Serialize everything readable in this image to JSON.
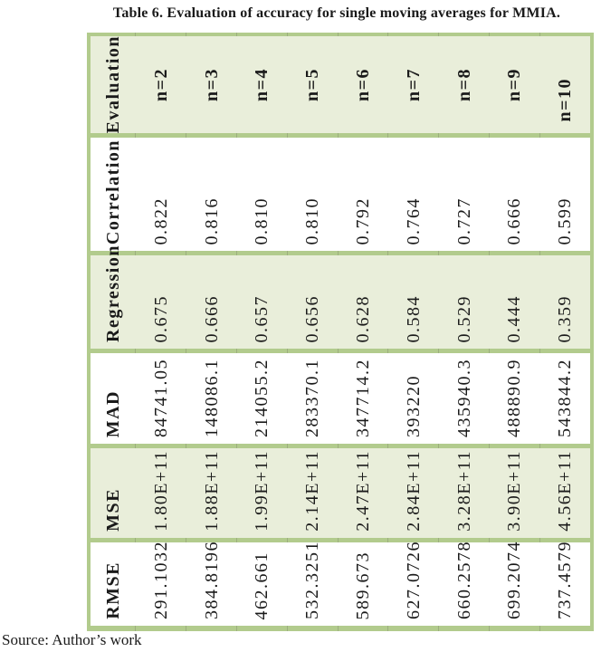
{
  "page": {
    "title": "Table 6. Evaluation of accuracy for single moving averages for MMIA.",
    "source_note": "Source: Author’s work"
  },
  "table": {
    "orientation": "rotated-90-ccw",
    "bands": [
      {
        "header": "Evaluation",
        "values": [
          "n=2",
          "n=3",
          "n=4",
          "n=5",
          "n=6",
          "n=7",
          "n=8",
          "n=9",
          "n=10"
        ]
      },
      {
        "header": "Correlation",
        "values": [
          "0.822",
          "0.816",
          "0.810",
          "0.810",
          "0.792",
          "0.764",
          "0.727",
          "0.666",
          "0.599"
        ]
      },
      {
        "header": "Regression",
        "values": [
          "0.675",
          "0.666",
          "0.657",
          "0.656",
          "0.628",
          "0.584",
          "0.529",
          "0.444",
          "0.359"
        ]
      },
      {
        "header": "MAD",
        "values": [
          "84741.05",
          "148086.1",
          "214055.2",
          "283370.1",
          "347714.2",
          "393220",
          "435940.3",
          "488890.9",
          "543844.2"
        ]
      },
      {
        "header": "MSE",
        "values": [
          "1.80E+11",
          "1.88E+11",
          "1.99E+11",
          "2.14E+11",
          "2.47E+11",
          "2.84E+11",
          "3.28E+11",
          "3.90E+11",
          "4.56E+11"
        ]
      },
      {
        "header": "RMSE",
        "values": [
          "291.1032",
          "384.8196",
          "462.661",
          "532.3251",
          "589.673",
          "627.0726",
          "660.2578",
          "699.2074",
          "737.4579"
        ]
      }
    ]
  },
  "colors": {
    "band_fill_green": "#e9eeda",
    "band_fill_white": "#ffffff",
    "grid_green": "#b2cb8d",
    "tick_green": "#9cae7e",
    "text": "#1a1a1a"
  }
}
